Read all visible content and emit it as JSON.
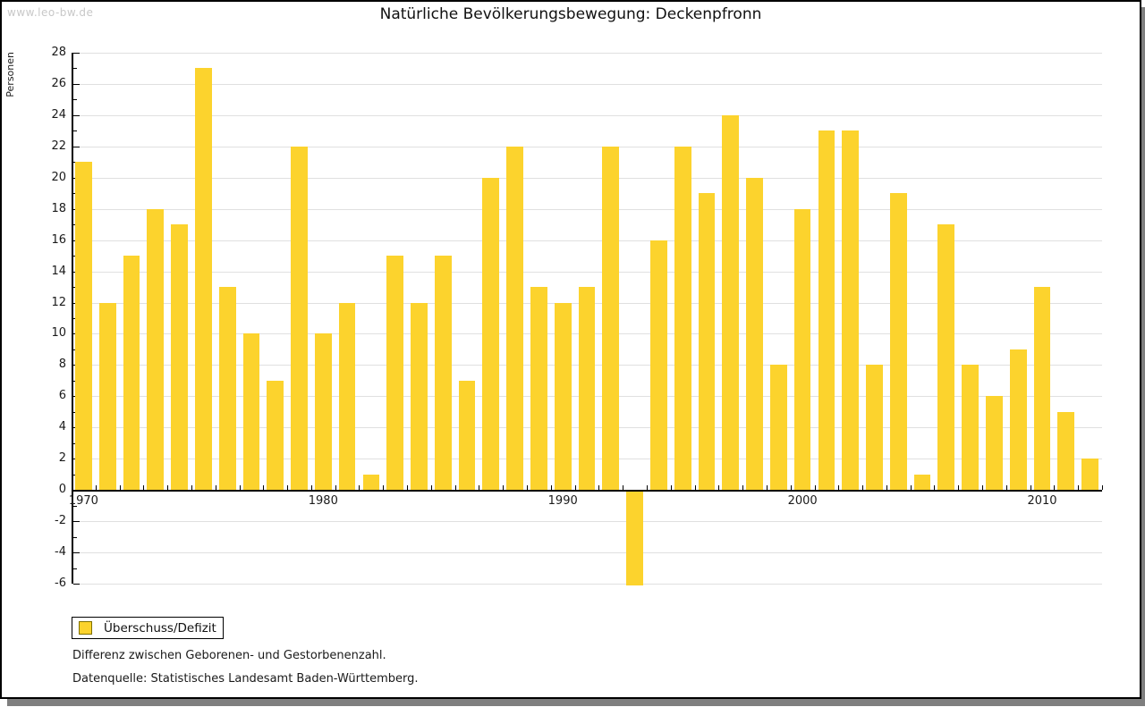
{
  "watermark": "www.leo-bw.de",
  "title": "Natürliche Bevölkerungsbewegung: Deckenpfronn",
  "legend": {
    "label": "Überschuss/Defizit"
  },
  "footnotes": {
    "line1": "Differenz zwischen Geborenen- und Gestorbenenzahl.",
    "line2": "Datenquelle: Statistisches Landesamt Baden-Württemberg."
  },
  "colors": {
    "bar": "#fcd32d",
    "bar_swatch_border": "#7f7000",
    "gridline": "#e0e0e0",
    "axis": "#000000",
    "watermark": "#c8c8c8",
    "frame_shadow": "#7f7f7f"
  },
  "chart_data": {
    "type": "bar",
    "title": "Natürliche Bevölkerungsbewegung: Deckenpfronn",
    "xlabel": "",
    "ylabel": "Personen",
    "series_name": "Überschuss/Defizit",
    "x": [
      1970,
      1971,
      1972,
      1973,
      1974,
      1975,
      1976,
      1977,
      1978,
      1979,
      1980,
      1981,
      1982,
      1983,
      1984,
      1985,
      1986,
      1987,
      1988,
      1989,
      1990,
      1991,
      1992,
      1993,
      1994,
      1995,
      1996,
      1997,
      1998,
      1999,
      2000,
      2001,
      2002,
      2003,
      2004,
      2005,
      2006,
      2007,
      2008,
      2009,
      2010,
      2011,
      2012
    ],
    "values": [
      21,
      12,
      15,
      18,
      17,
      27,
      13,
      10,
      7,
      22,
      10,
      12,
      1,
      15,
      12,
      15,
      7,
      20,
      22,
      13,
      12,
      13,
      22,
      -6,
      16,
      22,
      19,
      24,
      20,
      8,
      18,
      23,
      23,
      8,
      19,
      1,
      17,
      8,
      6,
      9,
      13,
      5,
      2
    ],
    "ylim": [
      -6,
      28
    ],
    "ytick_label_step": 2,
    "ytick_minor_step": 1,
    "xticks": [
      1970,
      1980,
      1990,
      2000,
      2010
    ],
    "grid": true,
    "legend_position": "bottom-left"
  }
}
